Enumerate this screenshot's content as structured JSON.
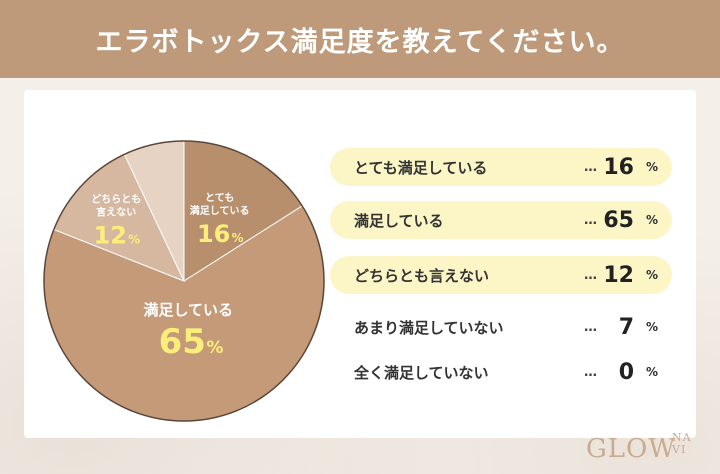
{
  "header": {
    "title": "エラボトックス満足度を教えてください。"
  },
  "unit": "%",
  "dots": "…",
  "logo": {
    "main": "GLOW",
    "sub_top": "NA",
    "sub_bottom": "VI"
  },
  "colors": {
    "header": "#be9a7a",
    "highlight": "#fcf5c6",
    "value_yellow": "#fcee7a"
  },
  "chart_data": {
    "type": "pie",
    "categories": [
      "とても満足している",
      "満足している",
      "どちらとも言えない",
      "あまり満足していない",
      "全く満足していない"
    ],
    "values": [
      16,
      65,
      12,
      7,
      0
    ],
    "colors": [
      "#b88f6c",
      "#c49a78",
      "#d6b7a0",
      "#e6d3c3",
      "#f0e4da"
    ],
    "pie_labels": [
      {
        "lines": [
          "とても",
          "満足している"
        ],
        "value": "16"
      },
      {
        "lines": [
          "満足している"
        ],
        "value": "65"
      },
      {
        "lines": [
          "どちらとも",
          "言えない"
        ],
        "value": "12"
      }
    ],
    "legend_values": [
      "16",
      "65",
      "12",
      "7",
      "0"
    ],
    "legend_highlight": [
      true,
      true,
      true,
      false,
      false
    ]
  }
}
